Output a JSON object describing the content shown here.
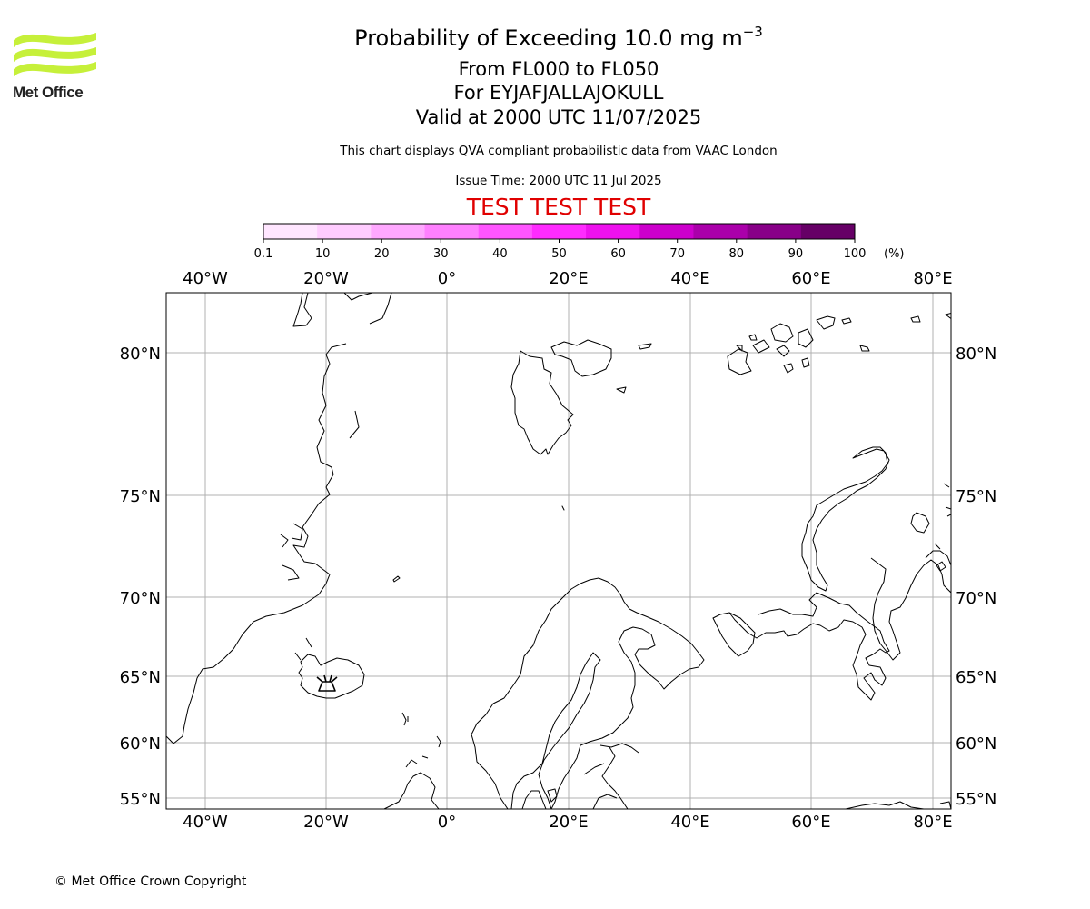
{
  "logo": {
    "name": "Met Office",
    "color": "#c6f03a"
  },
  "title": {
    "main": "Probability of Exceeding 10.0 mg m",
    "main_superscript": "−3",
    "level_range": "From FL000 to FL050",
    "volcano": "For EYJAFJALLAJOKULL",
    "valid": "Valid at 2000 UTC 11/07/2025"
  },
  "subtitle": "This chart displays QVA compliant probabilistic data from VAAC London",
  "issue_time": "Issue Time: 2000 UTC 11 Jul 2025",
  "test_banner": "TEST TEST TEST",
  "colorbar": {
    "ticks": [
      "0.1",
      "10",
      "20",
      "30",
      "40",
      "50",
      "60",
      "70",
      "80",
      "90",
      "100"
    ],
    "unit": "(%)",
    "colors": [
      "#ffe6ff",
      "#ffccff",
      "#ffa8ff",
      "#ff80ff",
      "#ff55ff",
      "#ff2bff",
      "#ee11ee",
      "#cc00cc",
      "#aa00aa",
      "#880088",
      "#660066"
    ]
  },
  "map": {
    "lon_labels": [
      "40°W",
      "20°W",
      "0°",
      "20°E",
      "40°E",
      "60°E",
      "80°E"
    ],
    "lat_labels": [
      "80°N",
      "75°N",
      "70°N",
      "65°N",
      "60°N",
      "55°N"
    ],
    "grid_color": "#b0b0b0"
  },
  "copyright": "© Met Office Crown Copyright"
}
